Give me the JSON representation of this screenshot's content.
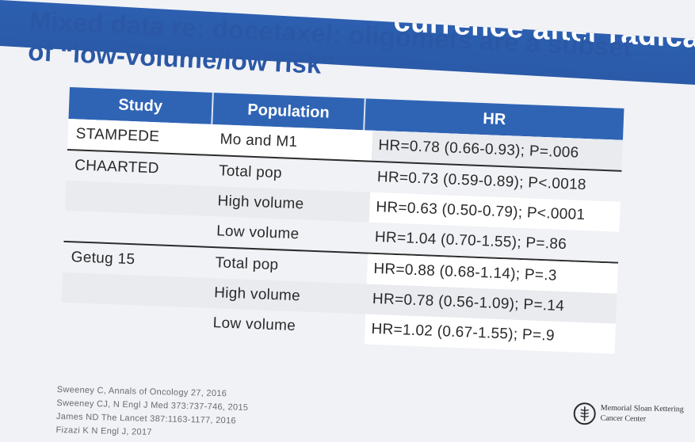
{
  "banner": {
    "text": "currence after radica"
  },
  "title": {
    "line1": "Mixed data re: docetaxel: oligomets are a subset",
    "line2": "of “low-volume/low risk”"
  },
  "table": {
    "headers": [
      "Study",
      "Population",
      "HR"
    ],
    "rows": [
      {
        "study": "STAMPEDE",
        "population": "Mo and M1",
        "hr": "HR=0.78 (0.66-0.93); P=.006"
      },
      {
        "study": "CHAARTED",
        "population": "Total pop",
        "hr": "HR=0.73 (0.59-0.89); P<.0018"
      },
      {
        "study": "",
        "population": "High volume",
        "hr": "HR=0.63 (0.50-0.79); P<.0001"
      },
      {
        "study": "",
        "population": "Low volume",
        "hr": "HR=1.04 (0.70-1.55); P=.86"
      },
      {
        "study": "Getug 15",
        "population": "Total pop",
        "hr": "HR=0.88 (0.68-1.14); P=.3"
      },
      {
        "study": "",
        "population": "High volume",
        "hr": "HR=0.78 (0.56-1.09); P=.14"
      },
      {
        "study": "",
        "population": "Low volume",
        "hr": "HR=1.02 (0.67-1.55); P=.9"
      }
    ]
  },
  "references": [
    "Sweeney C, Annals of Oncology 27, 2016",
    "Sweeney CJ, N Engl J Med 373:737-746, 2015",
    "James ND The Lancet 387:1163-1177, 2016",
    "Fizazi K N Engl J, 2017"
  ],
  "logo": {
    "line1": "Memorial Sloan Kettering",
    "line2": "Cancer Center"
  }
}
